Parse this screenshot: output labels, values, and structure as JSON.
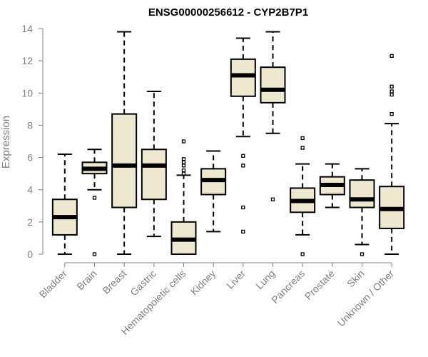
{
  "chart_data": {
    "type": "boxplot",
    "title": "ENSG00000256612 - CYP2B7P1",
    "xlabel": "",
    "ylabel": "Expression",
    "ylim": [
      0,
      14
    ],
    "yticks": [
      0,
      2,
      4,
      6,
      8,
      10,
      12,
      14
    ],
    "box_fill": "#EEE8D0",
    "categories": [
      "Bladder",
      "Brain",
      "Breast",
      "Gastric",
      "Hematopoietic cells",
      "Kidney",
      "Liver",
      "Lung",
      "Pancreas",
      "Prostate",
      "Skin",
      "Unknown / Other"
    ],
    "boxes": [
      {
        "whisker_low": 0.0,
        "q1": 1.2,
        "median": 2.3,
        "q3": 3.4,
        "whisker_high": 6.2,
        "outliers": []
      },
      {
        "whisker_low": 4.0,
        "q1": 5.0,
        "median": 5.3,
        "q3": 5.7,
        "whisker_high": 6.5,
        "outliers": [
          0.0,
          3.5
        ]
      },
      {
        "whisker_low": 0.0,
        "q1": 2.9,
        "median": 5.5,
        "q3": 8.7,
        "whisker_high": 13.8,
        "outliers": []
      },
      {
        "whisker_low": 1.1,
        "q1": 3.4,
        "median": 5.5,
        "q3": 6.5,
        "whisker_high": 10.1,
        "outliers": []
      },
      {
        "whisker_low": 0.0,
        "q1": 0.0,
        "median": 0.9,
        "q3": 2.0,
        "whisker_high": 4.9,
        "outliers": [
          5.0,
          5.2,
          5.5,
          5.7,
          5.9,
          7.0
        ]
      },
      {
        "whisker_low": 1.4,
        "q1": 3.7,
        "median": 4.6,
        "q3": 5.3,
        "whisker_high": 6.4,
        "outliers": []
      },
      {
        "whisker_low": 7.3,
        "q1": 9.8,
        "median": 11.1,
        "q3": 12.1,
        "whisker_high": 13.4,
        "outliers": [
          1.4,
          2.9,
          5.5,
          6.1
        ]
      },
      {
        "whisker_low": 7.5,
        "q1": 9.4,
        "median": 10.2,
        "q3": 11.6,
        "whisker_high": 13.8,
        "outliers": [
          3.4
        ]
      },
      {
        "whisker_low": 1.2,
        "q1": 2.6,
        "median": 3.3,
        "q3": 4.1,
        "whisker_high": 5.6,
        "outliers": [
          0.0,
          6.6,
          7.2
        ]
      },
      {
        "whisker_low": 2.9,
        "q1": 3.7,
        "median": 4.3,
        "q3": 4.8,
        "whisker_high": 5.6,
        "outliers": []
      },
      {
        "whisker_low": 0.6,
        "q1": 2.9,
        "median": 3.4,
        "q3": 4.6,
        "whisker_high": 5.3,
        "outliers": [
          0.0
        ]
      },
      {
        "whisker_low": 0.0,
        "q1": 1.6,
        "median": 2.8,
        "q3": 4.2,
        "whisker_high": 8.1,
        "outliers": [
          8.7,
          9.9,
          10.1,
          10.4,
          12.3
        ]
      }
    ]
  }
}
